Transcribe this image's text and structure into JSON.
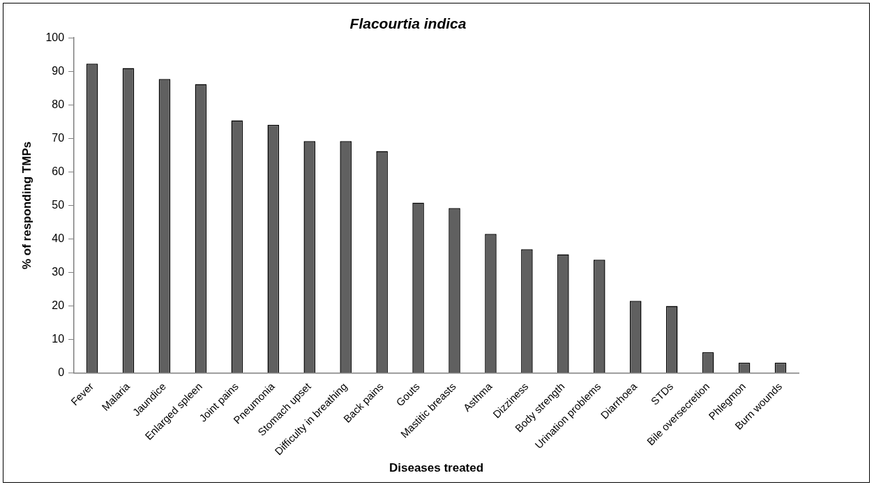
{
  "chart_data": {
    "type": "bar",
    "title": "Flacourtia indica",
    "xlabel": "Diseases treated",
    "ylabel": "% of responding TMPs",
    "categories": [
      "Fever",
      "Malaria",
      "Jaundice",
      "Enlarged spleen",
      "Joint pains",
      "Pneumonia",
      "Stomach upset",
      "Difficulty in breathing",
      "Back pains",
      "Gouts",
      "Mastitic breasts",
      "Asthma",
      "Dizziness",
      "Body strength",
      "Urination problems",
      "Diarrhoea",
      "STDs",
      "Bile oversecretion",
      "Phlegmon",
      "Burn wounds"
    ],
    "values": [
      92.3,
      91,
      87.7,
      86.2,
      75.4,
      74,
      69.2,
      69.2,
      66.2,
      50.8,
      49.2,
      41.5,
      36.9,
      35.4,
      33.8,
      21.5,
      20,
      6.2,
      3.1,
      3.1
    ],
    "color": "#606060",
    "ylim": [
      0,
      100
    ],
    "yticks": [
      0,
      10,
      20,
      30,
      40,
      50,
      60,
      70,
      80,
      90,
      100
    ],
    "grid": false,
    "legend": false
  }
}
